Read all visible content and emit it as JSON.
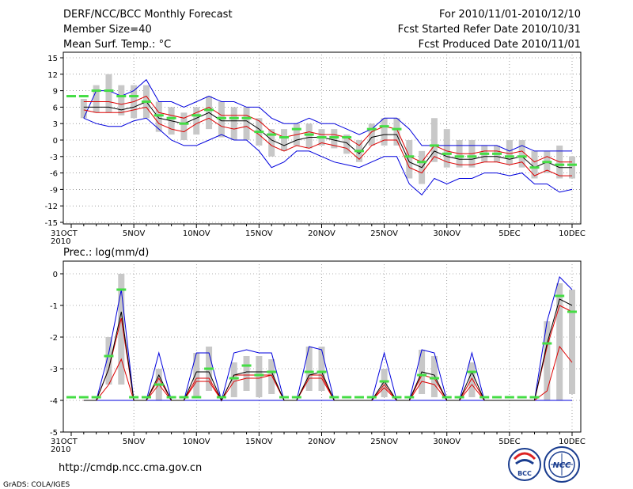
{
  "header": {
    "left": [
      "DERF/NCC/BCC Monthly Forecast",
      "Member Size=40",
      "Mean Surf. Temp.: °C"
    ],
    "right": [
      "For 2010/11/01-2010/12/10",
      "Fcst Started Refer Date 2010/10/31",
      "Fcst Produced Date 2010/11/01"
    ]
  },
  "footer": {
    "url": "http://cmdp.ncc.cma.gov.cn",
    "credit": "GrADS: COLA/IGES",
    "logo_bcc": "BCC",
    "logo_ncc": "NCC"
  },
  "colors": {
    "max_line": "#0000dd",
    "mean_line": "#000000",
    "spread_line": "#dd0000",
    "obs_marker": "#44dd44",
    "box": "#c8c8c8"
  },
  "chart_data": [
    {
      "type": "line",
      "title": "Mean Surf. Temp.: °C",
      "x": [
        "31OCT",
        "1NOV",
        "2NOV",
        "3NOV",
        "4NOV",
        "5NOV",
        "6NOV",
        "7NOV",
        "8NOV",
        "9NOV",
        "10NOV",
        "11NOV",
        "12NOV",
        "13NOV",
        "14NOV",
        "15NOV",
        "16NOV",
        "17NOV",
        "18NOV",
        "19NOV",
        "20NOV",
        "21NOV",
        "22NOV",
        "23NOV",
        "24NOV",
        "25NOV",
        "26NOV",
        "27NOV",
        "28NOV",
        "29NOV",
        "30NOV",
        "1DEC",
        "2DEC",
        "3DEC",
        "4DEC",
        "5DEC",
        "6DEC",
        "7DEC",
        "8DEC",
        "9DEC",
        "10DEC"
      ],
      "tick_labels": [
        [
          "31OCT",
          "2010"
        ],
        [
          "5NOV"
        ],
        [
          "10NOV"
        ],
        [
          "15NOV"
        ],
        [
          "20NOV"
        ],
        [
          "25NOV"
        ],
        [
          "30NOV"
        ],
        [
          "5DEC"
        ],
        [
          "10DEC"
        ]
      ],
      "tick_index": [
        0,
        5,
        10,
        15,
        20,
        25,
        30,
        35,
        40
      ],
      "ylim": [
        -15,
        15
      ],
      "yticks": [
        -15,
        -12,
        -9,
        -6,
        -3,
        0,
        3,
        6,
        9,
        12,
        15
      ],
      "grid": "dotted",
      "series": [
        {
          "name": "max",
          "values": [
            null,
            4,
            9,
            9,
            8,
            9,
            11,
            7,
            7,
            6,
            7,
            8,
            7,
            7,
            6,
            6,
            4,
            3,
            3,
            4,
            3,
            3,
            2,
            1,
            2,
            4,
            4,
            2,
            -1,
            -1,
            -1,
            -1,
            -1,
            -1,
            -1,
            -2,
            -1,
            -2,
            -2,
            -2,
            -2
          ]
        },
        {
          "name": "upper",
          "values": [
            null,
            7,
            7,
            7,
            6.5,
            7,
            8,
            5,
            4.5,
            4,
            5,
            6,
            4.5,
            4.5,
            4.5,
            3.5,
            1.5,
            0.5,
            1,
            1.5,
            1,
            1,
            0.5,
            -1,
            1.5,
            2.5,
            2,
            -3,
            -4,
            -1,
            -2,
            -2.5,
            -2.5,
            -2,
            -2,
            -2.5,
            -2,
            -4,
            -3,
            -4,
            -4
          ]
        },
        {
          "name": "mean",
          "values": [
            null,
            6,
            6,
            6,
            5.5,
            6,
            7,
            4,
            3.5,
            3,
            4,
            5,
            3.5,
            3.5,
            3.5,
            2,
            0,
            -1,
            0,
            0.5,
            0.5,
            0,
            -0.5,
            -2.5,
            0.5,
            1,
            1,
            -4,
            -5,
            -2,
            -3,
            -3.5,
            -3.5,
            -3,
            -3,
            -3.5,
            -3,
            -5,
            -4,
            -5,
            -5
          ]
        },
        {
          "name": "lower",
          "values": [
            null,
            5.5,
            5,
            5,
            5,
            5.5,
            6,
            3,
            2,
            1.5,
            3,
            4,
            2.5,
            2,
            2.5,
            1,
            -1,
            -2,
            -1,
            -1.5,
            -0.5,
            -1,
            -1.5,
            -3.5,
            -1,
            0,
            0,
            -5,
            -6,
            -3,
            -4,
            -4.5,
            -4.5,
            -4,
            -4,
            -4.5,
            -4,
            -6.5,
            -5.5,
            -6.5,
            -6.5
          ]
        },
        {
          "name": "min",
          "values": [
            null,
            4,
            3,
            2.5,
            2.5,
            3.5,
            4,
            2,
            0,
            -1,
            -1,
            0,
            1,
            0,
            0,
            -2,
            -5,
            -4,
            -2,
            -2,
            -3,
            -4,
            -4.5,
            -5,
            -4,
            -3,
            -3,
            -8,
            -10,
            -7,
            -8,
            -7,
            -7,
            -6,
            -6,
            -6.5,
            -6,
            -8,
            -8,
            -9.5,
            -9
          ]
        },
        {
          "name": "box_top",
          "values": [
            null,
            7.5,
            10,
            12,
            10,
            10,
            10,
            7,
            6,
            5,
            6,
            8,
            7,
            6,
            6,
            4,
            2,
            2,
            3,
            3,
            2,
            2,
            1,
            0,
            3,
            4,
            4,
            0,
            -2,
            4,
            2,
            0,
            0,
            -1,
            -1,
            0,
            0,
            -2,
            -2,
            -1,
            -3
          ]
        },
        {
          "name": "box_bottom",
          "values": [
            null,
            4,
            5,
            5,
            4.5,
            4,
            4,
            1.5,
            1,
            0,
            1,
            2,
            0.5,
            0,
            0,
            -1,
            -3,
            -2,
            -1,
            -1.5,
            -1,
            -1.5,
            -2.5,
            -4,
            -1,
            -1,
            -1,
            -7,
            -8,
            -4,
            -5,
            -5,
            -5,
            -4,
            -4,
            -4.5,
            -5,
            -7,
            -6,
            -7,
            -7
          ]
        },
        {
          "name": "obs",
          "values": [
            8,
            8,
            9,
            9,
            8,
            8,
            7,
            4.5,
            4,
            3,
            4.5,
            5.5,
            4,
            4,
            4,
            1.5,
            1,
            0.5,
            2,
            1,
            0.5,
            0.5,
            0.5,
            -2,
            2,
            2.5,
            2,
            -3,
            -4,
            -1,
            -2.5,
            -3,
            -3,
            -2.5,
            -2.5,
            -3,
            -3,
            -5,
            -4,
            -4.5,
            -4.5
          ]
        }
      ]
    },
    {
      "type": "line",
      "title": "Prec.: log(mm/d)",
      "x": [
        "31OCT",
        "1NOV",
        "2NOV",
        "3NOV",
        "4NOV",
        "5NOV",
        "6NOV",
        "7NOV",
        "8NOV",
        "9NOV",
        "10NOV",
        "11NOV",
        "12NOV",
        "13NOV",
        "14NOV",
        "15NOV",
        "16NOV",
        "17NOV",
        "18NOV",
        "19NOV",
        "20NOV",
        "21NOV",
        "22NOV",
        "23NOV",
        "24NOV",
        "25NOV",
        "26NOV",
        "27NOV",
        "28NOV",
        "29NOV",
        "30NOV",
        "1DEC",
        "2DEC",
        "3DEC",
        "4DEC",
        "5DEC",
        "6DEC",
        "7DEC",
        "8DEC",
        "9DEC",
        "10DEC"
      ],
      "tick_labels": [
        [
          "31OCT",
          "2010"
        ],
        [
          "5NOV"
        ],
        [
          "10NOV"
        ],
        [
          "15NOV"
        ],
        [
          "20NOV"
        ],
        [
          "25NOV"
        ],
        [
          "30NOV"
        ],
        [
          "5DEC"
        ],
        [
          "10DEC"
        ]
      ],
      "tick_index": [
        0,
        5,
        10,
        15,
        20,
        25,
        30,
        35,
        40
      ],
      "ylim": [
        -5,
        0.2
      ],
      "yticks": [
        -5,
        -4,
        -3,
        -2,
        -1,
        0
      ],
      "grid": "dotted",
      "series": [
        {
          "name": "max",
          "values": [
            null,
            -4,
            -4,
            -2.5,
            -0.5,
            -4,
            -4,
            -2.5,
            -4,
            -4,
            -2.5,
            -2.5,
            -4,
            -2.5,
            -2.4,
            -2.5,
            -2.5,
            -4,
            -4,
            -2.3,
            -2.4,
            -4,
            -4,
            -4,
            -4,
            -2.5,
            -4,
            -4,
            -2.4,
            -2.5,
            -4,
            -4,
            -2.5,
            -4,
            -4,
            -4,
            -4,
            -4,
            -1.5,
            -0.1,
            -0.5
          ]
        },
        {
          "name": "mean",
          "values": [
            null,
            -4,
            -4,
            -3,
            -1.2,
            -4,
            -4,
            -3.2,
            -4,
            -4,
            -3.1,
            -3.1,
            -4,
            -3.2,
            -3.1,
            -3.1,
            -3.1,
            -4,
            -4,
            -3.2,
            -3.1,
            -4,
            -4,
            -4,
            -4,
            -3.4,
            -4,
            -4,
            -3.1,
            -3.2,
            -4,
            -4,
            -3.1,
            -4,
            -4,
            -4,
            -4,
            -4,
            -2.2,
            -0.8,
            -1.0
          ]
        },
        {
          "name": "upper",
          "values": [
            null,
            -4,
            -4,
            -3,
            -1.4,
            -4,
            -4,
            -3.3,
            -4,
            -4,
            -3.3,
            -3.3,
            -4,
            -3.2,
            -3.2,
            -3.2,
            -3.2,
            -4,
            -4,
            -3.2,
            -3.2,
            -4,
            -4,
            -4,
            -4,
            -3.5,
            -4,
            -4,
            -3.2,
            -3.3,
            -4,
            -4,
            -3.3,
            -4,
            -4,
            -4,
            -4,
            -4,
            -2.3,
            -1.0,
            -1.2
          ]
        },
        {
          "name": "lower",
          "values": [
            null,
            -4,
            -4,
            -3.5,
            -2.7,
            -4,
            -4,
            -3.5,
            -4,
            -4,
            -3.4,
            -3.4,
            -4,
            -3.4,
            -3.3,
            -3.3,
            -3.2,
            -4,
            -4,
            -3.3,
            -3.3,
            -4,
            -4,
            -4,
            -4,
            -3.6,
            -4,
            -4,
            -3.4,
            -3.5,
            -4,
            -4,
            -3.5,
            -4,
            -4,
            -4,
            -4,
            -4,
            -3.7,
            -2.3,
            -2.8
          ]
        },
        {
          "name": "min",
          "values": [
            null,
            -4,
            -4,
            -4,
            -4,
            -4,
            -4,
            -4,
            -4,
            -4,
            -4,
            -4,
            -4,
            -4,
            -4,
            -4,
            -4,
            -4,
            -4,
            -4,
            -4,
            -4,
            -4,
            -4,
            -4,
            -4,
            -4,
            -4,
            -4,
            -4,
            -4,
            -4,
            -4,
            -4,
            -4,
            -4,
            -4,
            -4,
            -4,
            -4,
            -4
          ]
        },
        {
          "name": "box_top",
          "values": [
            null,
            -4,
            -4,
            -2,
            0,
            -4,
            -4,
            -3,
            -4,
            -4,
            -2.5,
            -2.3,
            -4,
            -2.8,
            -2.6,
            -2.6,
            -2.7,
            -4,
            -4,
            -2.3,
            -2.3,
            -4,
            -4,
            -4,
            -4,
            -3,
            -4,
            -4,
            -2.4,
            -2.6,
            -4,
            -4,
            -2.8,
            -4,
            -4,
            -4,
            -4,
            -4,
            -1.5,
            -0.3,
            -0.5
          ]
        },
        {
          "name": "box_bottom",
          "values": [
            null,
            -4,
            -4,
            -3.5,
            -3.5,
            -4,
            -4,
            -4,
            -4,
            -4,
            -3.9,
            -3.7,
            -4,
            -3.9,
            -3.7,
            -3.9,
            -3.8,
            -4,
            -4,
            -3.7,
            -3.7,
            -4,
            -4,
            -4,
            -4,
            -3.9,
            -4,
            -4,
            -3.8,
            -3.9,
            -4,
            -4,
            -3.9,
            -4,
            -4,
            -4,
            -4,
            -4,
            -4,
            -4,
            -3.8
          ]
        },
        {
          "name": "obs",
          "values": [
            -3.9,
            -3.9,
            -3.9,
            -2.6,
            -0.5,
            -3.9,
            -3.9,
            -3.5,
            -3.9,
            -3.9,
            -3.9,
            -3.0,
            -3.9,
            -3.3,
            -2.9,
            -3.2,
            -3.1,
            -3.9,
            -3.9,
            -3.1,
            -3.1,
            -3.9,
            -3.9,
            -3.9,
            -3.9,
            -3.4,
            -3.9,
            -3.9,
            -3.2,
            -3.3,
            -3.9,
            -3.9,
            -3.1,
            -3.9,
            -3.9,
            -3.9,
            -3.9,
            -3.9,
            -2.2,
            -0.7,
            -1.2
          ]
        }
      ]
    }
  ]
}
